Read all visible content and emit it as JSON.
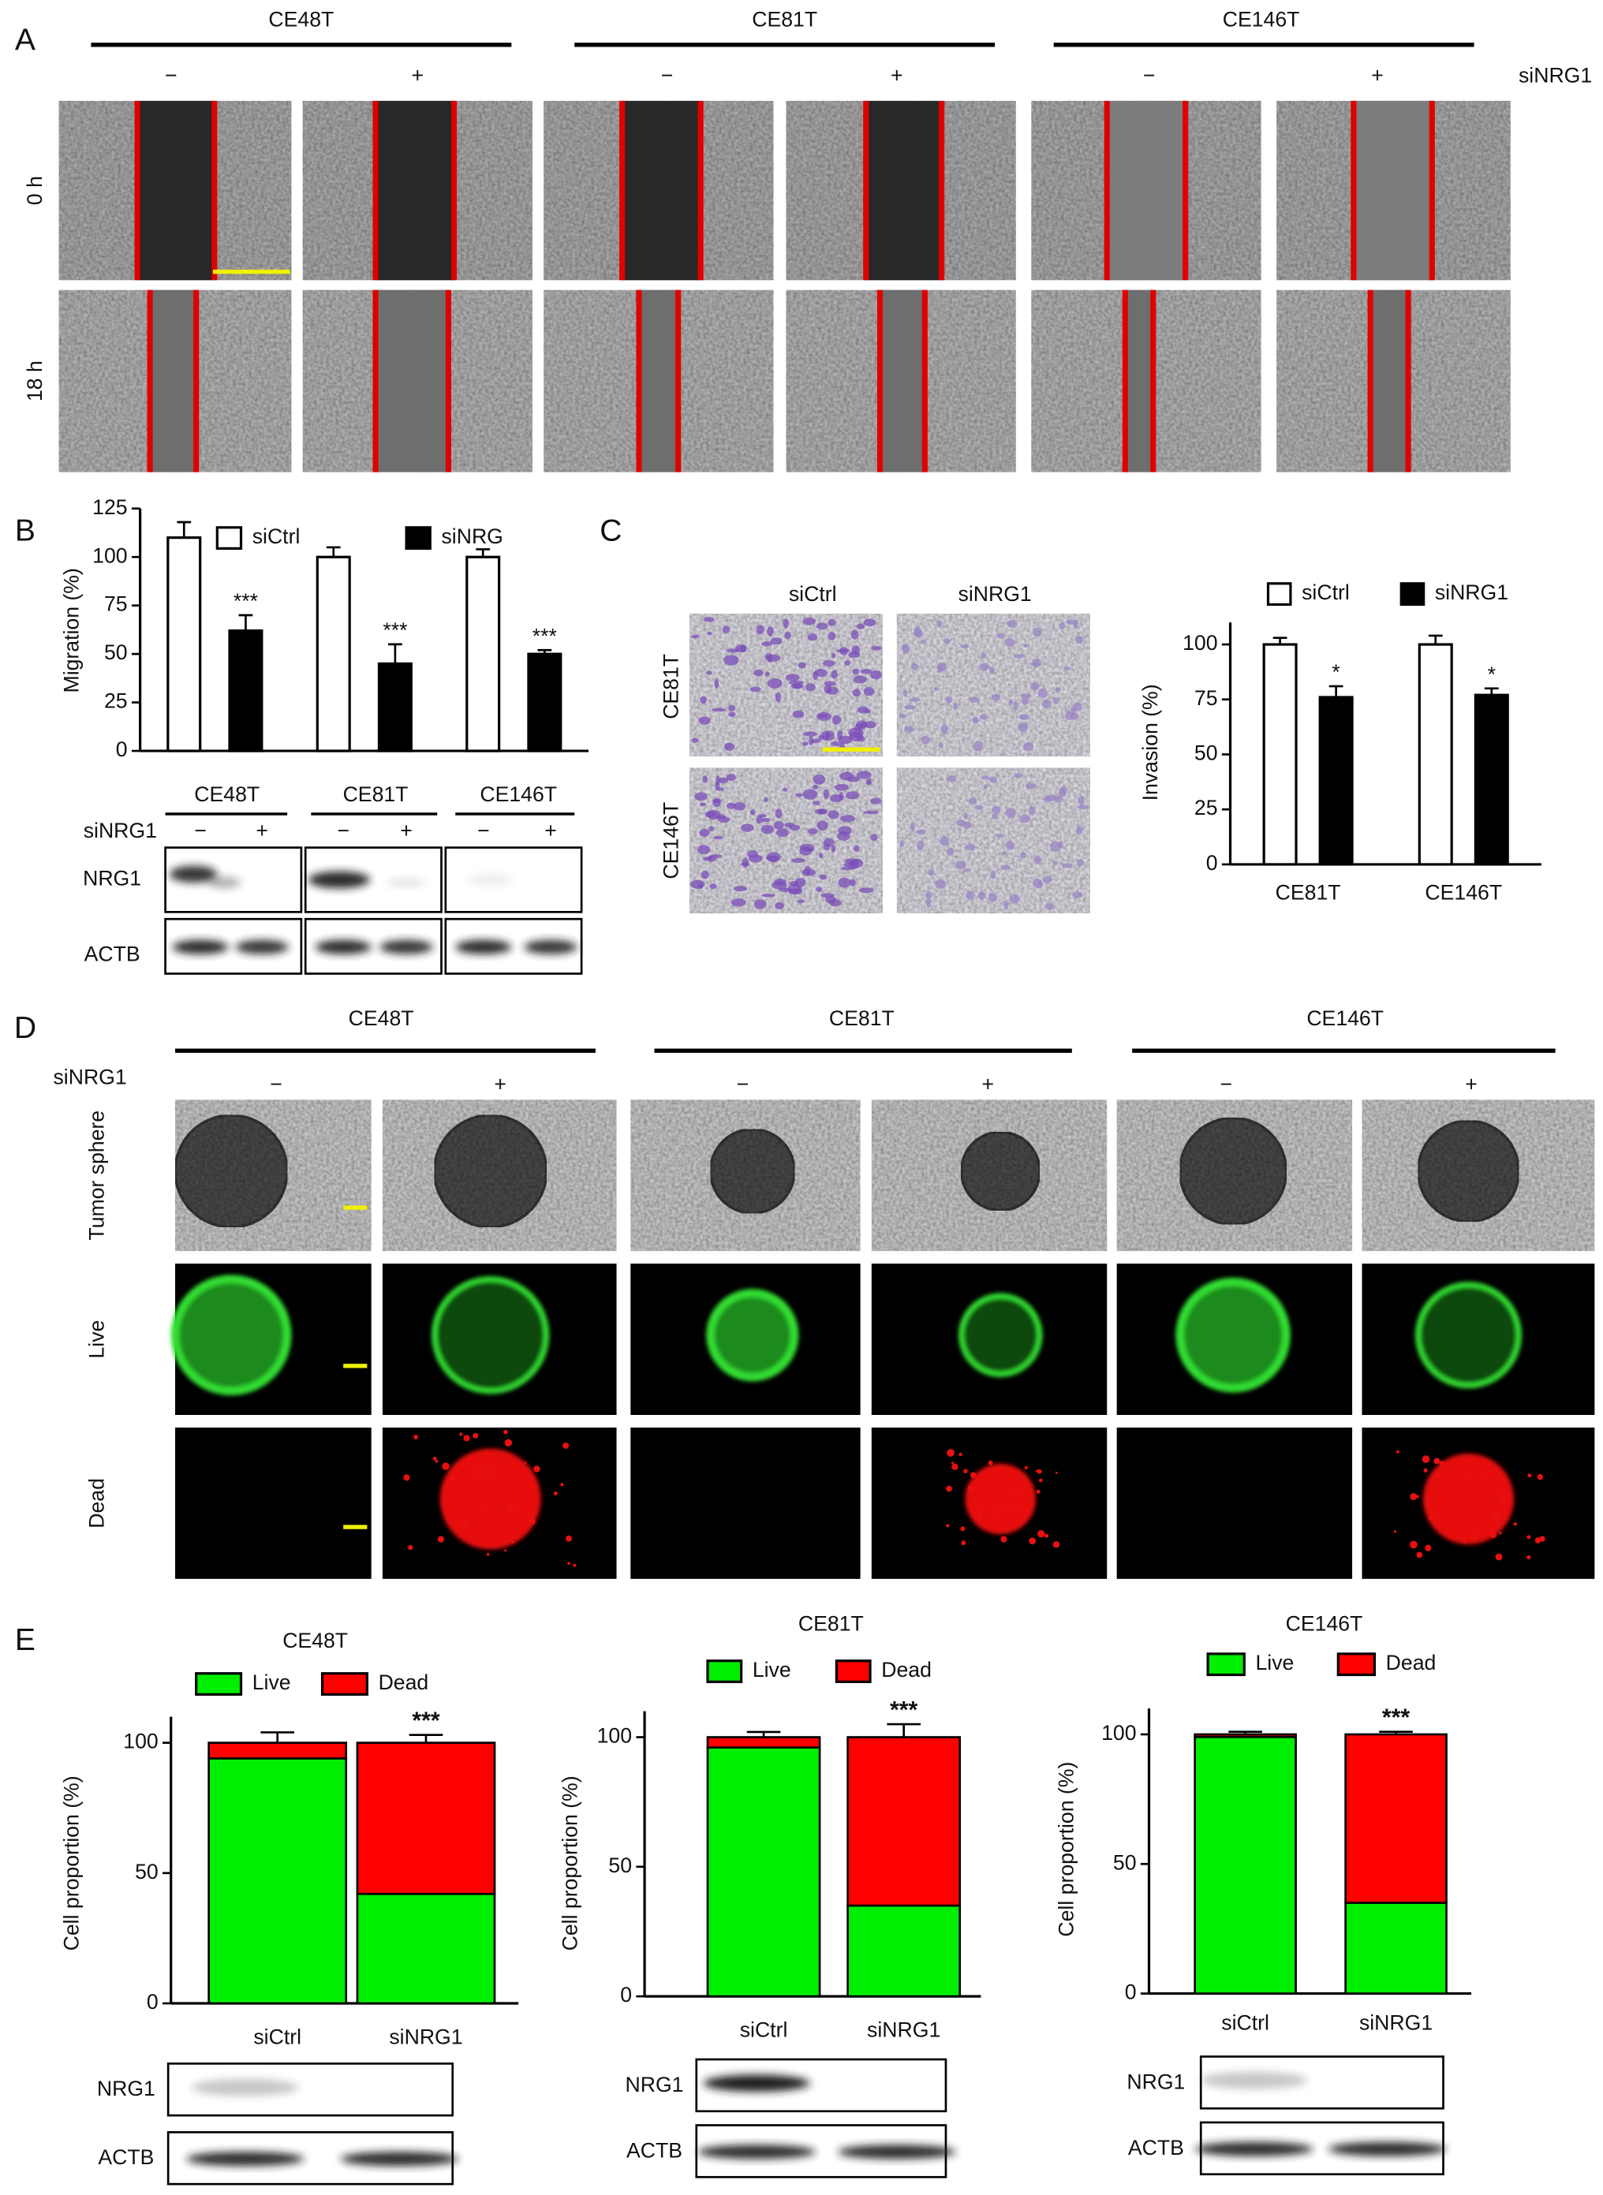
{
  "panel_labels": [
    "A",
    "B",
    "C",
    "D",
    "E"
  ],
  "panel_a": {
    "cell_lines": [
      "CE48T",
      "CE81T",
      "CE146T"
    ],
    "signs": [
      "−",
      "+"
    ],
    "treatment": "siNRG1",
    "timepoints": [
      "0 h",
      "18 h"
    ]
  },
  "panel_b_blot": {
    "treatment": "siNRG1",
    "signs": [
      "−",
      "+"
    ],
    "proteins": [
      "NRG1",
      "ACTB"
    ]
  },
  "panel_c_images": {
    "conditions": [
      "siCtrl",
      "siNRG1"
    ],
    "cell_lines": [
      "CE81T",
      "CE146T"
    ]
  },
  "panel_d": {
    "cell_lines": [
      "CE48T",
      "CE81T",
      "CE146T"
    ],
    "treatment": "siNRG1",
    "signs": [
      "−",
      "+"
    ],
    "rows": [
      "Tumor sphere",
      "Live",
      "Dead"
    ]
  },
  "panel_e_blots": {
    "proteins": [
      "NRG1",
      "ACTB"
    ]
  },
  "chart_data": [
    {
      "type": "bar",
      "ylabel": "Migration (%)",
      "categories": [
        "CE48T",
        "CE81T",
        "CE146T"
      ],
      "series": [
        {
          "name": "siCtrl",
          "color": "#ffffff",
          "values": [
            110,
            100,
            100
          ],
          "errors": [
            8,
            5,
            4
          ]
        },
        {
          "name": "siNRG",
          "color": "#000000",
          "values": [
            62,
            45,
            50
          ],
          "errors": [
            8,
            10,
            2
          ],
          "significance": [
            "***",
            "***",
            "***"
          ]
        }
      ],
      "ylim": [
        0,
        125
      ],
      "yticks": [
        0,
        25,
        50,
        75,
        100,
        125
      ],
      "legend": "top"
    },
    {
      "type": "bar",
      "ylabel": "Invasion (%)",
      "categories": [
        "CE81T",
        "CE146T"
      ],
      "series": [
        {
          "name": "siCtrl",
          "color": "#ffffff",
          "values": [
            100,
            100
          ],
          "errors": [
            3,
            4
          ]
        },
        {
          "name": "siNRG1",
          "color": "#000000",
          "values": [
            76,
            77
          ],
          "errors": [
            5,
            3
          ],
          "significance": [
            "*",
            "*"
          ]
        }
      ],
      "ylim": [
        0,
        110
      ],
      "yticks": [
        0,
        25,
        50,
        75,
        100
      ],
      "legend": "top"
    },
    {
      "type": "stacked_bar",
      "title": "CE48T",
      "ylabel": "Cell proportion (%)",
      "categories": [
        "siCtrl",
        "siNRG1"
      ],
      "series": [
        {
          "name": "Live",
          "color": "#00ee00",
          "values": [
            94,
            42
          ],
          "errors": [
            null,
            3
          ],
          "significance": [
            null,
            "***"
          ]
        },
        {
          "name": "Dead",
          "color": "#ff0000",
          "values": [
            6,
            58
          ],
          "errors": [
            4,
            3
          ],
          "significance": [
            null,
            "***"
          ]
        }
      ],
      "ylim": [
        0,
        110
      ],
      "yticks": [
        0,
        50,
        100
      ],
      "legend": "top"
    },
    {
      "type": "stacked_bar",
      "title": "CE81T",
      "ylabel": "Cell proportion (%)",
      "categories": [
        "siCtrl",
        "siNRG1"
      ],
      "series": [
        {
          "name": "Live",
          "color": "#00ee00",
          "values": [
            96,
            35
          ],
          "errors": [
            null,
            5
          ],
          "significance": [
            null,
            "***"
          ]
        },
        {
          "name": "Dead",
          "color": "#ff0000",
          "values": [
            4,
            65
          ],
          "errors": [
            2,
            5
          ],
          "significance": [
            null,
            "***"
          ]
        }
      ],
      "ylim": [
        0,
        110
      ],
      "yticks": [
        0,
        50,
        100
      ],
      "legend": "top"
    },
    {
      "type": "stacked_bar",
      "title": "CE146T",
      "ylabel": "Cell proportion (%)",
      "categories": [
        "siCtrl",
        "siNRG1"
      ],
      "series": [
        {
          "name": "Live",
          "color": "#00ee00",
          "values": [
            99,
            35
          ],
          "errors": [
            null,
            1
          ],
          "significance": [
            null,
            "***"
          ]
        },
        {
          "name": "Dead",
          "color": "#ff0000",
          "values": [
            1,
            65
          ],
          "errors": [
            1,
            1
          ],
          "significance": [
            null,
            "***"
          ]
        }
      ],
      "ylim": [
        0,
        110
      ],
      "yticks": [
        0,
        50,
        100
      ],
      "legend": "top"
    }
  ]
}
